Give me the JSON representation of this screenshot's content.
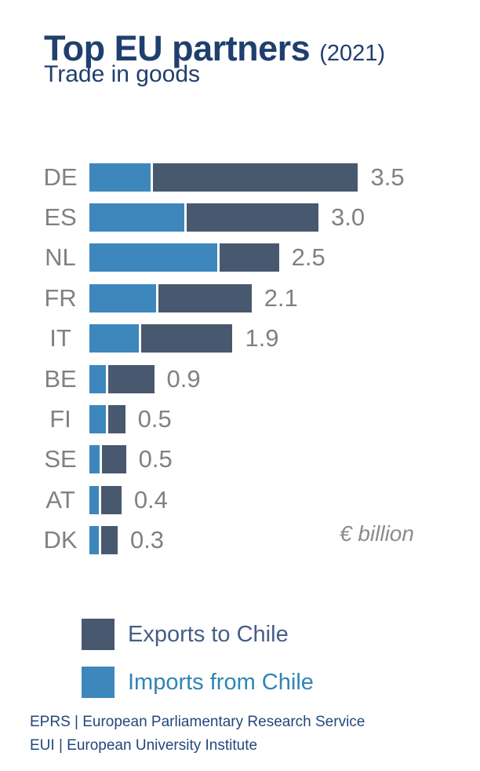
{
  "header": {
    "title": "Top EU partners",
    "title_suffix": "(2021)",
    "subtitle": "Trade in goods"
  },
  "chart_data": {
    "type": "bar",
    "orientation": "horizontal",
    "stacked": true,
    "title": "Top EU partners (2021)",
    "subtitle": "Trade in goods",
    "unit_label": "€ billion",
    "categories": [
      "DE",
      "ES",
      "NL",
      "FR",
      "IT",
      "BE",
      "FI",
      "SE",
      "AT",
      "DK"
    ],
    "series": [
      {
        "name": "Imports from Chile",
        "color": "#3E87BC",
        "values": [
          0.8,
          1.25,
          1.68,
          0.88,
          0.65,
          0.22,
          0.22,
          0.13,
          0.12,
          0.12
        ]
      },
      {
        "name": "Exports to Chile",
        "color": "#48586F",
        "values": [
          2.7,
          1.73,
          0.78,
          1.22,
          1.2,
          0.6,
          0.22,
          0.32,
          0.27,
          0.22
        ]
      }
    ],
    "total_labels": [
      "3.5",
      "3.0",
      "2.5",
      "2.1",
      "1.9",
      "0.9",
      "0.5",
      "0.5",
      "0.4",
      "0.3"
    ],
    "totals": [
      3.5,
      3.0,
      2.5,
      2.1,
      1.9,
      0.9,
      0.5,
      0.5,
      0.4,
      0.3
    ],
    "xlim": [
      0,
      3.6
    ],
    "grid": false,
    "legend_position": "bottom-left"
  },
  "legend": {
    "items": [
      {
        "label": "Exports to Chile",
        "color": "#48586F",
        "text_color": "#465E86"
      },
      {
        "label": "Imports from Chile",
        "color": "#3E87BC",
        "text_color": "#2F85B5"
      }
    ]
  },
  "footer": {
    "line1": "EPRS | European Parliamentary Research Service",
    "line2": "EUI | European University Institute"
  },
  "colors": {
    "title": "#1F3F6E",
    "axis_labels": "#808184",
    "exports_bar": "#48586F",
    "imports_bar": "#3E87BC",
    "footer_text": "#24477B"
  }
}
